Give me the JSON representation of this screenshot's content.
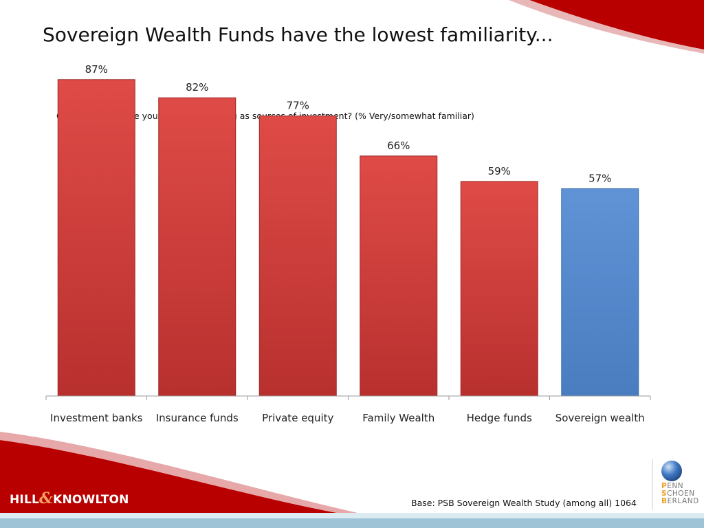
{
  "slide": {
    "title": "Sovereign Wealth Funds have the lowest familiarity...",
    "question": "Q. How familiar are you with the following as sources of investment? (% Very/somewhat familiar)",
    "base_note": "Base: PSB Sovereign Wealth Study (among all) 1064"
  },
  "logos": {
    "left": {
      "icon": "hill-knowlton-logo",
      "text": "HILL & KNOWLTON"
    },
    "right": {
      "icon": "penn-schoen-berland-globe-logo",
      "lines": [
        "PENN",
        "SCHOEN",
        "BERLAND"
      ]
    }
  },
  "colors": {
    "bar_default": "#d2403d",
    "bar_highlight": "#5b8fd1",
    "accent_red": "#b80000"
  },
  "chart_data": {
    "type": "bar",
    "title": "",
    "xlabel": "",
    "ylabel": "",
    "categories": [
      "Investment banks",
      "Insurance funds",
      "Private equity",
      "Family Wealth",
      "Hedge funds",
      "Sovereign wealth"
    ],
    "values": [
      87,
      82,
      77,
      66,
      59,
      57
    ],
    "data_labels": [
      "87%",
      "82%",
      "77%",
      "66%",
      "59%",
      "57%"
    ],
    "highlighted_category": "Sovereign wealth",
    "unit": "%",
    "ylim": [
      0,
      100
    ],
    "grid": false,
    "legend": "none"
  }
}
